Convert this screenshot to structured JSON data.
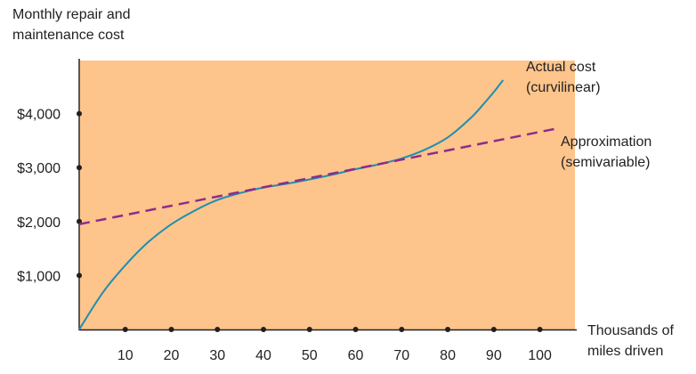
{
  "chart_data": {
    "type": "line",
    "ylabel_lines": [
      "Monthly repair and",
      "maintenance cost"
    ],
    "xlabel_lines": [
      "Thousands of",
      "miles driven"
    ],
    "x_ticks": [
      10,
      20,
      30,
      40,
      50,
      60,
      70,
      80,
      90,
      100
    ],
    "x_tick_labels": [
      "10",
      "20",
      "30",
      "40",
      "50",
      "60",
      "70",
      "80",
      "90",
      "100"
    ],
    "y_ticks": [
      1000,
      2000,
      3000,
      4000
    ],
    "y_tick_labels": [
      "$1,000",
      "$2,000",
      "$3,000",
      "$4,000"
    ],
    "xlim": [
      0,
      108
    ],
    "ylim": [
      0,
      5000
    ],
    "plot_background": "#fdc48b",
    "series": [
      {
        "name_lines": [
          "Actual cost",
          "(curvilinear)"
        ],
        "style": "solid",
        "color": "#1e8fb0",
        "x": [
          0,
          5,
          10,
          15,
          20,
          25,
          30,
          35,
          40,
          45,
          50,
          55,
          60,
          65,
          70,
          75,
          80,
          85,
          88,
          90,
          92
        ],
        "y": [
          0,
          670,
          1190,
          1620,
          1950,
          2200,
          2400,
          2530,
          2630,
          2700,
          2780,
          2870,
          2970,
          3060,
          3170,
          3330,
          3560,
          3920,
          4200,
          4400,
          4620
        ]
      },
      {
        "name_lines": [
          "Approximation",
          "(semivariable)"
        ],
        "style": "dashed",
        "color": "#8e2b8c",
        "x": [
          0,
          104
        ],
        "y": [
          1950,
          3730
        ]
      }
    ]
  }
}
